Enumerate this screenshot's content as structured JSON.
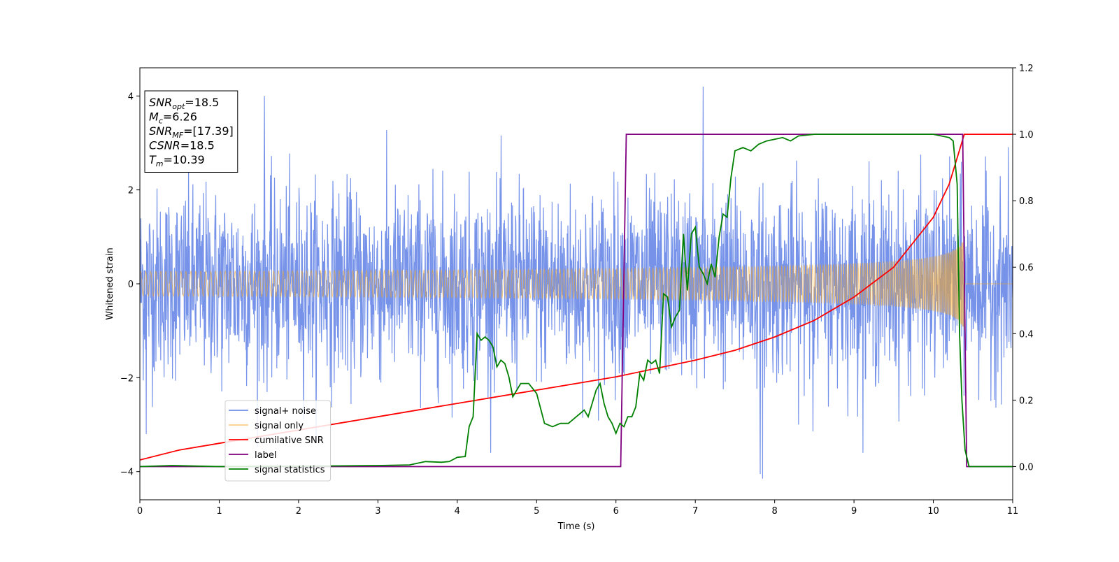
{
  "chart_data": {
    "type": "line",
    "xlabel": "Time (s)",
    "ylabel": "Whitened strain",
    "xlim": [
      0,
      11
    ],
    "ylim_left": [
      -4.6,
      4.6
    ],
    "ylim_right": [
      -0.1,
      1.2
    ],
    "x_ticks": [
      0,
      1,
      2,
      3,
      4,
      5,
      6,
      7,
      8,
      9,
      10,
      11
    ],
    "y_left_ticks": [
      -4,
      -2,
      0,
      2,
      4
    ],
    "y_right_ticks": [
      0.0,
      0.2,
      0.4,
      0.6,
      0.8,
      1.0,
      1.2
    ],
    "grid": false,
    "legend_placement": "lower-left",
    "info_box": {
      "placement": "top-left",
      "lines": [
        {
          "symbol": "SNR",
          "sub": "opt",
          "value": "=18.5"
        },
        {
          "symbol": "M",
          "sub": "c",
          "value": "=6.26"
        },
        {
          "symbol": "SNR",
          "sub": "MF",
          "value": "=[17.39]"
        },
        {
          "symbol": "CSNR",
          "sub": "",
          "value": "=18.5"
        },
        {
          "symbol": "T",
          "sub": "m",
          "value": "=10.39"
        }
      ]
    },
    "series": [
      {
        "name": "signal+ noise",
        "axis": "left",
        "color": "#4169e1",
        "kind": "noise",
        "noise_std": 1.0,
        "extremes": [
          [
            1.57,
            4.0
          ],
          [
            7.1,
            4.2
          ],
          [
            7.85,
            -4.15
          ],
          [
            7.82,
            -4.05
          ],
          [
            0.08,
            -3.2
          ]
        ]
      },
      {
        "name": "signal only",
        "axis": "left",
        "color": "#f5a623",
        "kind": "chirp",
        "t_merge": 10.39,
        "amp_start": 0.1,
        "amp_end": 1.0
      },
      {
        "name": "cumilative SNR",
        "axis": "right",
        "color": "#ff0000",
        "x": [
          0,
          0.5,
          1,
          2,
          3,
          4,
          5,
          6,
          7,
          7.5,
          8,
          8.5,
          9,
          9.5,
          10,
          10.2,
          10.39,
          10.45,
          11
        ],
        "y": [
          0.02,
          0.05,
          0.07,
          0.11,
          0.15,
          0.19,
          0.23,
          0.27,
          0.32,
          0.35,
          0.39,
          0.44,
          0.51,
          0.6,
          0.75,
          0.85,
          1.0,
          1.0,
          1.0
        ]
      },
      {
        "name": "label",
        "axis": "right",
        "color": "#800080",
        "x": [
          0,
          6.06,
          6.13,
          10.37,
          10.42,
          11
        ],
        "y": [
          0,
          0,
          1,
          1,
          0,
          0
        ]
      },
      {
        "name": "signal statistics",
        "axis": "right",
        "color": "#008000",
        "x": [
          0,
          0.4,
          1,
          2,
          3,
          3.4,
          3.6,
          3.8,
          3.9,
          4.0,
          4.1,
          4.15,
          4.2,
          4.25,
          4.3,
          4.35,
          4.4,
          4.45,
          4.5,
          4.55,
          4.6,
          4.65,
          4.7,
          4.75,
          4.8,
          4.9,
          5.0,
          5.1,
          5.2,
          5.3,
          5.4,
          5.5,
          5.55,
          5.6,
          5.65,
          5.7,
          5.75,
          5.8,
          5.85,
          5.9,
          5.95,
          6.0,
          6.05,
          6.1,
          6.15,
          6.2,
          6.25,
          6.3,
          6.35,
          6.4,
          6.45,
          6.5,
          6.55,
          6.6,
          6.65,
          6.7,
          6.75,
          6.8,
          6.85,
          6.9,
          6.95,
          7.0,
          7.05,
          7.1,
          7.15,
          7.2,
          7.25,
          7.3,
          7.35,
          7.4,
          7.45,
          7.5,
          7.6,
          7.7,
          7.8,
          7.9,
          8.0,
          8.1,
          8.2,
          8.3,
          8.5,
          9.0,
          9.5,
          10.0,
          10.2,
          10.25,
          10.3,
          10.33,
          10.36,
          10.4,
          10.45,
          10.6,
          11
        ],
        "y": [
          0.0,
          0.003,
          0.0,
          0.001,
          0.003,
          0.005,
          0.015,
          0.013,
          0.015,
          0.028,
          0.03,
          0.12,
          0.15,
          0.4,
          0.38,
          0.39,
          0.38,
          0.36,
          0.3,
          0.32,
          0.31,
          0.27,
          0.21,
          0.23,
          0.25,
          0.25,
          0.22,
          0.13,
          0.12,
          0.13,
          0.13,
          0.15,
          0.16,
          0.17,
          0.15,
          0.19,
          0.23,
          0.25,
          0.19,
          0.15,
          0.13,
          0.1,
          0.13,
          0.12,
          0.15,
          0.15,
          0.18,
          0.28,
          0.26,
          0.32,
          0.31,
          0.32,
          0.28,
          0.52,
          0.51,
          0.42,
          0.45,
          0.47,
          0.7,
          0.53,
          0.7,
          0.72,
          0.6,
          0.58,
          0.55,
          0.61,
          0.57,
          0.69,
          0.76,
          0.75,
          0.87,
          0.95,
          0.96,
          0.95,
          0.97,
          0.98,
          0.985,
          0.99,
          0.98,
          0.995,
          1.0,
          1.0,
          1.0,
          1.0,
          0.99,
          0.98,
          0.85,
          0.4,
          0.2,
          0.05,
          0.0,
          0.0,
          0.0
        ]
      }
    ]
  }
}
